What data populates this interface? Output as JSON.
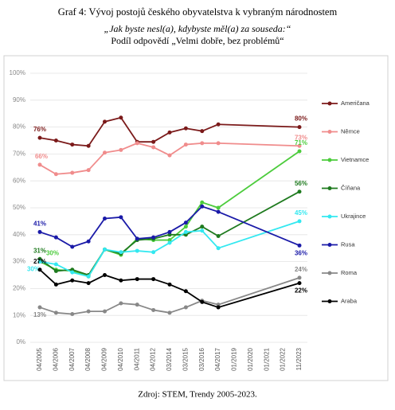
{
  "chart_data": {
    "type": "line",
    "title": "Graf 4: Vývoj postojů českého obyvatelstva k vybraným národnostem",
    "subtitle": "„Jak byste nesl(a), kdybyste měl(a) za souseda:“",
    "subtitle2": "Podíl odpovědí „Velmi dobře, bez problémů“",
    "source": "Zdroj: STEM, Trendy 2005-2023.",
    "categories": [
      "04/2005",
      "04/2006",
      "04/2007",
      "04/2008",
      "04/2009",
      "04/2010",
      "04/2011",
      "04/2012",
      "03/2014",
      "03/2015",
      "03/2016",
      "04/2017",
      "01/2019",
      "01/2020",
      "01/2021",
      "01/2022",
      "11/2023"
    ],
    "ylim": [
      0,
      100
    ],
    "yticks": [
      {
        "value": 0,
        "label": "0%"
      },
      {
        "value": 10,
        "label": "10%"
      },
      {
        "value": 20,
        "label": "20%"
      },
      {
        "value": 30,
        "label": "30%"
      },
      {
        "value": 40,
        "label": "40%"
      },
      {
        "value": 50,
        "label": "50%"
      },
      {
        "value": 60,
        "label": "60%"
      },
      {
        "value": 70,
        "label": "70%"
      },
      {
        "value": 80,
        "label": "80%"
      },
      {
        "value": 90,
        "label": "90%"
      },
      {
        "value": 100,
        "label": "100%"
      }
    ],
    "grid": true,
    "span_gaps": true,
    "legend": "right",
    "series": [
      {
        "name": "Američana",
        "color": "#7b1a1a",
        "values": [
          76,
          75,
          73.5,
          73,
          82,
          83.5,
          74.5,
          74.5,
          78,
          79.5,
          78.5,
          81,
          null,
          null,
          null,
          null,
          80
        ],
        "value_labels": [
          "76%",
          null,
          null,
          null,
          null,
          null,
          null,
          null,
          null,
          null,
          null,
          null,
          null,
          null,
          null,
          null,
          "80%"
        ]
      },
      {
        "name": "Němce",
        "color": "#f08c8c",
        "values": [
          66,
          62.5,
          63,
          64,
          70.5,
          71.5,
          74,
          72.5,
          69.5,
          73.5,
          74,
          74,
          null,
          null,
          null,
          null,
          73
        ],
        "value_labels": [
          "66%",
          null,
          null,
          null,
          null,
          null,
          null,
          null,
          null,
          null,
          null,
          null,
          null,
          null,
          null,
          null,
          "73%"
        ]
      },
      {
        "name": "Vietnamce",
        "color": "#4ccc3c",
        "values": [
          30,
          27,
          26.5,
          24.5,
          34.5,
          32.5,
          38.5,
          38,
          38,
          43,
          52,
          50,
          null,
          null,
          null,
          null,
          71
        ],
        "value_labels": [
          "30%",
          null,
          null,
          null,
          null,
          null,
          null,
          null,
          null,
          null,
          null,
          null,
          null,
          null,
          null,
          null,
          "71%"
        ]
      },
      {
        "name": "Číňana",
        "color": "#1e7a1e",
        "values": [
          31,
          26.5,
          27,
          25,
          34.5,
          33,
          38,
          38.5,
          40,
          40,
          43,
          39.5,
          null,
          null,
          null,
          null,
          56
        ],
        "value_labels": [
          "31%",
          null,
          null,
          null,
          null,
          null,
          null,
          null,
          null,
          null,
          null,
          null,
          null,
          null,
          null,
          null,
          "56%"
        ]
      },
      {
        "name": "Ukrajince",
        "color": "#33e8f0",
        "values": [
          30,
          29,
          26,
          24.5,
          34.5,
          33.5,
          34,
          33.5,
          37,
          41,
          41.5,
          35,
          null,
          null,
          null,
          null,
          45
        ],
        "value_labels": [
          "30%",
          null,
          null,
          null,
          null,
          null,
          null,
          null,
          null,
          null,
          null,
          null,
          null,
          null,
          null,
          null,
          "45%"
        ]
      },
      {
        "name": "Rusa",
        "color": "#1a1aa8",
        "values": [
          41,
          39,
          35.5,
          37.5,
          46,
          46.5,
          38.5,
          39,
          41,
          44.5,
          50.5,
          48.5,
          null,
          null,
          null,
          null,
          36
        ],
        "value_labels": [
          "41%",
          null,
          null,
          null,
          null,
          null,
          null,
          null,
          null,
          null,
          null,
          null,
          null,
          null,
          null,
          null,
          "36%"
        ]
      },
      {
        "name": "Roma",
        "color": "#888888",
        "values": [
          13,
          11,
          10.5,
          11.5,
          11.5,
          14.5,
          14,
          12,
          11,
          13,
          15.5,
          14,
          null,
          null,
          null,
          null,
          24
        ],
        "value_labels": [
          "13%",
          null,
          null,
          null,
          null,
          null,
          null,
          null,
          null,
          null,
          null,
          null,
          null,
          null,
          null,
          null,
          "24%"
        ]
      },
      {
        "name": "Araba",
        "color": "#000000",
        "values": [
          27,
          21.5,
          23,
          22,
          25,
          23,
          23.5,
          23.5,
          21.5,
          19,
          15,
          13,
          null,
          null,
          null,
          null,
          22
        ],
        "value_labels": [
          "27%",
          null,
          null,
          null,
          null,
          null,
          null,
          null,
          null,
          null,
          null,
          null,
          null,
          null,
          null,
          null,
          "22%"
        ]
      }
    ]
  }
}
